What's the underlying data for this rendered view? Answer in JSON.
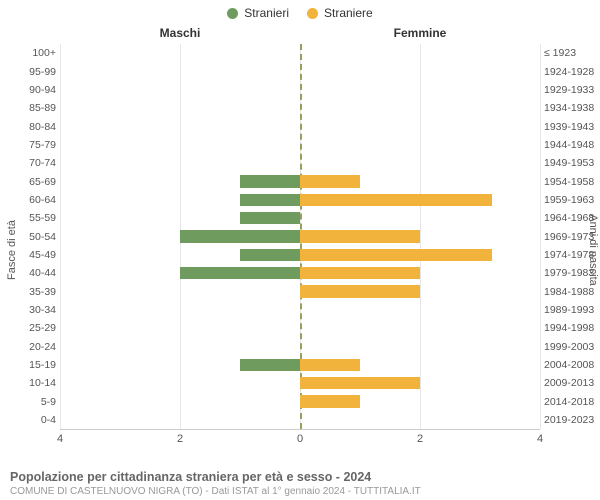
{
  "chart": {
    "type": "population-pyramid",
    "background_color": "#ffffff",
    "grid_color": "#e6e6e6",
    "axis_dash_color": "#97a05a",
    "text_color": "#555555",
    "legend": {
      "male": {
        "label": "Stranieri",
        "color": "#6f9c5e"
      },
      "female": {
        "label": "Straniere",
        "color": "#f1b33b"
      }
    },
    "column_headers": {
      "left": "Maschi",
      "right": "Femmine"
    },
    "axis_titles": {
      "left": "Fasce di età",
      "right": "Anni di nascita"
    },
    "x": {
      "min": -4,
      "max": 4,
      "ticks": [
        4,
        2,
        0,
        2,
        4
      ]
    },
    "bar_thickness_ratio": 0.78,
    "rows": [
      {
        "age": "100+",
        "birth": "≤ 1923",
        "m": 0,
        "f": 0
      },
      {
        "age": "95-99",
        "birth": "1924-1928",
        "m": 0,
        "f": 0
      },
      {
        "age": "90-94",
        "birth": "1929-1933",
        "m": 0,
        "f": 0
      },
      {
        "age": "85-89",
        "birth": "1934-1938",
        "m": 0,
        "f": 0
      },
      {
        "age": "80-84",
        "birth": "1939-1943",
        "m": 0,
        "f": 0
      },
      {
        "age": "75-79",
        "birth": "1944-1948",
        "m": 0,
        "f": 0
      },
      {
        "age": "70-74",
        "birth": "1949-1953",
        "m": 0,
        "f": 0
      },
      {
        "age": "65-69",
        "birth": "1954-1958",
        "m": 1,
        "f": 1
      },
      {
        "age": "60-64",
        "birth": "1959-1963",
        "m": 1,
        "f": 3.2
      },
      {
        "age": "55-59",
        "birth": "1964-1968",
        "m": 1,
        "f": 0
      },
      {
        "age": "50-54",
        "birth": "1969-1973",
        "m": 2,
        "f": 2
      },
      {
        "age": "45-49",
        "birth": "1974-1978",
        "m": 1,
        "f": 3.2
      },
      {
        "age": "40-44",
        "birth": "1979-1983",
        "m": 2,
        "f": 2
      },
      {
        "age": "35-39",
        "birth": "1984-1988",
        "m": 0,
        "f": 2
      },
      {
        "age": "30-34",
        "birth": "1989-1993",
        "m": 0,
        "f": 0
      },
      {
        "age": "25-29",
        "birth": "1994-1998",
        "m": 0,
        "f": 0
      },
      {
        "age": "20-24",
        "birth": "1999-2003",
        "m": 0,
        "f": 0
      },
      {
        "age": "15-19",
        "birth": "2004-2008",
        "m": 1,
        "f": 1
      },
      {
        "age": "10-14",
        "birth": "2009-2013",
        "m": 0,
        "f": 2
      },
      {
        "age": "5-9",
        "birth": "2014-2018",
        "m": 0,
        "f": 1
      },
      {
        "age": "0-4",
        "birth": "2019-2023",
        "m": 0,
        "f": 0
      }
    ],
    "caption": "Popolazione per cittadinanza straniera per età e sesso - 2024",
    "subcaption": "COMUNE DI CASTELNUOVO NIGRA (TO) - Dati ISTAT al 1° gennaio 2024 - TUTTITALIA.IT"
  }
}
